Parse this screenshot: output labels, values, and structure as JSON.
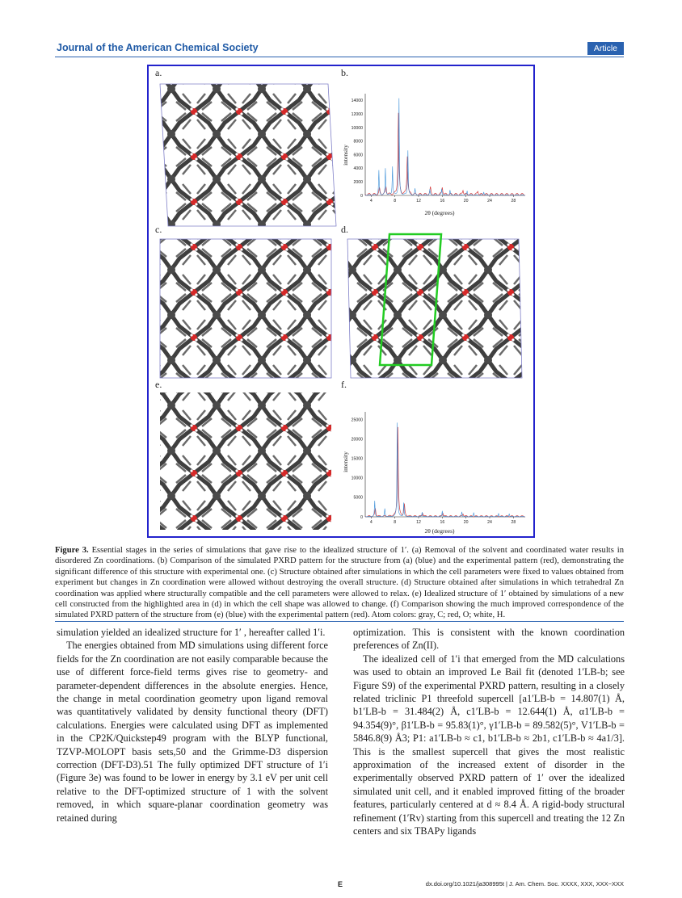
{
  "header": {
    "journal": "Journal of the American Chemical Society",
    "badge": "Article"
  },
  "figure": {
    "labels": [
      "a.",
      "b.",
      "c.",
      "d.",
      "e.",
      "f."
    ],
    "plot_b": {
      "ylabel": "intensity",
      "xlabel": "2θ (degrees)",
      "yticks": [
        "0",
        "2000",
        "4000",
        "6000",
        "8000",
        "10000",
        "12000",
        "14000"
      ],
      "xticks": [
        "4",
        "8",
        "12",
        "16",
        "20",
        "24",
        "28"
      ]
    },
    "plot_f": {
      "ylabel": "intensity",
      "xlabel": "2θ (degrees)",
      "yticks": [
        "0",
        "5000",
        "10000",
        "15000",
        "20000",
        "25000"
      ],
      "xticks": [
        "4",
        "8",
        "12",
        "16",
        "20",
        "24",
        "28"
      ]
    },
    "colors": {
      "sim": "#3a8fd8",
      "exp": "#d63a3a",
      "frame": "#2222cc",
      "highlight": "#22cc22"
    }
  },
  "chart_data": [
    {
      "type": "line",
      "panel": "b",
      "xlabel": "2θ (degrees)",
      "ylabel": "intensity",
      "xlim": [
        3,
        30
      ],
      "ylim": [
        0,
        15000
      ],
      "series": [
        {
          "peaks": [
            [
              5.3,
              3600
            ],
            [
              6.4,
              3900
            ],
            [
              7.6,
              4200
            ],
            [
              8.7,
              14200
            ],
            [
              10.2,
              6600
            ],
            [
              11.4,
              900
            ],
            [
              13.9,
              800
            ],
            [
              15.9,
              900
            ],
            [
              17.3,
              700
            ],
            [
              20.2,
              600
            ],
            [
              23.0,
              500
            ]
          ]
        },
        {
          "peaks": [
            [
              5.4,
              900
            ],
            [
              6.5,
              1200
            ],
            [
              8.6,
              12000
            ],
            [
              10.1,
              5700
            ],
            [
              14.0,
              1000
            ],
            [
              16.0,
              1100
            ],
            [
              19.5,
              700
            ],
            [
              22.0,
              500
            ]
          ]
        }
      ]
    },
    {
      "type": "line",
      "panel": "f",
      "xlabel": "2θ (degrees)",
      "ylabel": "intensity",
      "xlim": [
        3,
        30
      ],
      "ylim": [
        0,
        27000
      ],
      "series": [
        {
          "peaks": [
            [
              4.6,
              4000
            ],
            [
              6.3,
              2000
            ],
            [
              8.4,
              24200
            ],
            [
              9.5,
              3500
            ],
            [
              12.6,
              1200
            ],
            [
              16.0,
              1500
            ],
            [
              19.3,
              1200
            ],
            [
              21.3,
              1100
            ],
            [
              25.5,
              900
            ],
            [
              27.3,
              800
            ]
          ]
        },
        {
          "peaks": [
            [
              4.7,
              2000
            ],
            [
              8.5,
              23000
            ],
            [
              9.6,
              3000
            ],
            [
              12.7,
              800
            ],
            [
              16.1,
              900
            ],
            [
              19.5,
              700
            ]
          ]
        }
      ]
    }
  ],
  "caption": {
    "label": "Figure 3.",
    "text": " Essential stages in the series of simulations that gave rise to the idealized structure of 1′. (a) Removal of the solvent and coordinated water results in disordered Zn coordinations. (b) Comparison of the simulated PXRD pattern for the structure from (a) (blue) and the experimental pattern (red), demonstrating the significant difference of this structure with experimental one. (c) Structure obtained after simulations in which the cell parameters were fixed to values obtained from experiment but changes in Zn coordination were allowed without destroying the overall structure. (d) Structure obtained after simulations in which tetrahedral Zn coordination was applied where structurally compatible and the cell parameters were allowed to relax. (e) Idealized structure of 1′ obtained by simulations of a new cell constructed from the highlighted area in (d) in which the cell shape was allowed to change. (f) Comparison showing the much improved correspondence of the simulated PXRD pattern of the structure from (e) (blue) with the experimental pattern (red). Atom colors: gray, C; red, O; white, H."
  },
  "left_col": {
    "p1": "simulation yielded an idealized structure for 1′ , hereafter called 1′i.",
    "p2": "The energies obtained from MD simulations using different force fields for the Zn coordination are not easily comparable because the use of different force-field terms gives rise to geometry- and parameter-dependent differences in the absolute energies. Hence, the change in metal coordination geometry upon ligand removal was quantitatively validated by density functional theory (DFT) calculations. Energies were calculated using DFT as implemented in the CP2K/Quickstep49 program with the BLYP functional, TZVP-MOLOPT basis sets,50 and the Grimme-D3 dispersion correction (DFT-D3).51 The fully optimized DFT structure of 1′i (Figure 3e) was found to be lower in energy by 3.1 eV per unit cell relative to the DFT-optimized structure of 1 with the solvent removed, in which square-planar coordination geometry was retained during"
  },
  "right_col": {
    "p1": "optimization. This is consistent with the known coordination preferences of Zn(II).",
    "p2": "The idealized cell of 1′i that emerged from the MD calculations was used to obtain an improved Le Bail fit (denoted 1′LB-b; see Figure S9) of the experimental PXRD pattern, resulting in a closely related triclinic P1 threefold supercell [a1′LB-b = 14.807(1) Å, b1′LB-b = 31.484(2) Å, c1′LB-b = 12.644(1) Å, α1′LB-b = 94.354(9)°, β1′LB-b = 95.83(1)°, γ1′LB-b = 89.582(5)°, V1′LB-b = 5846.8(9) Å3; P1: a1′LB-b ≈ c1, b1′LB-b ≈ 2b1, c1′LB-b ≈ 4a1/3]. This is the smallest supercell that gives the most realistic approximation of the increased extent of disorder in the experimentally observed PXRD pattern of 1′ over the idealized simulated unit cell, and it enabled improved fitting of the broader features, particularly centered at d ≈ 8.4 Å. A rigid-body structural refinement (1′Rv) starting from this supercell and treating the 12 Zn centers and six TBAPy ligands"
  },
  "footer": {
    "page": "E",
    "doi": "dx.doi.org/10.1021/ja308995t | J. Am. Chem. Soc. XXXX, XXX, XXX−XXX"
  }
}
